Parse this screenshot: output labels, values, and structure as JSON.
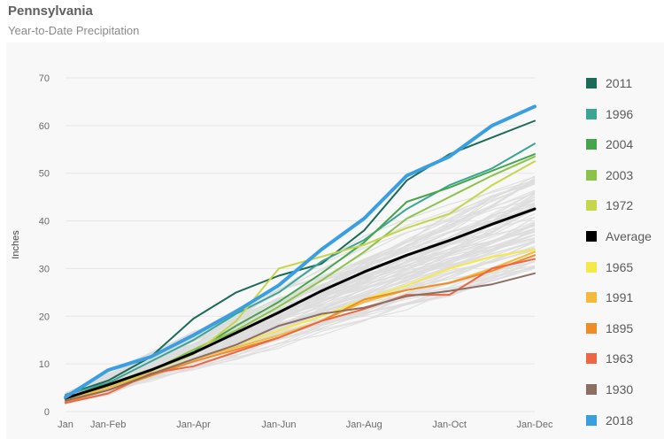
{
  "header": {
    "title": "Pennsylvania",
    "subtitle": "Year-to-Date Precipitation"
  },
  "colors": {
    "background_lines": "#dddddd",
    "axis_text": "#6a6a6a",
    "panel": "#f8f8f8"
  },
  "chart_data": {
    "type": "line",
    "title": "Pennsylvania",
    "subtitle": "Year-to-Date Precipitation",
    "xlabel": "",
    "ylabel": "Inches",
    "ylim": [
      0,
      70
    ],
    "yticks": [
      0,
      10,
      20,
      30,
      40,
      50,
      60,
      70
    ],
    "x_months": [
      0,
      1,
      2,
      3,
      4,
      5,
      6,
      7,
      8,
      9,
      10,
      11
    ],
    "xtick_labels": [
      {
        "label": "Jan",
        "month": 0
      },
      {
        "label": "Jan-Feb",
        "month": 1
      },
      {
        "label": "Jan-Apr",
        "month": 3
      },
      {
        "label": "Jan-Jun",
        "month": 5
      },
      {
        "label": "Jan-Aug",
        "month": 7
      },
      {
        "label": "Jan-Oct",
        "month": 9
      },
      {
        "label": "Jan-Dec",
        "month": 11
      }
    ],
    "grid": true,
    "legend_position": "right",
    "background_series_note_count": 0,
    "series": [
      {
        "name": "2011",
        "color": "#1b6b58",
        "width": 2,
        "values": [
          3.5,
          6.5,
          11.5,
          19.5,
          25,
          28.5,
          31,
          38,
          48.5,
          54,
          57.5,
          61
        ]
      },
      {
        "name": "1996",
        "color": "#3aa593",
        "width": 2,
        "values": [
          3.5,
          6,
          10.5,
          15,
          20.5,
          25,
          31.5,
          36,
          42.5,
          47.5,
          51,
          56.2
        ]
      },
      {
        "name": "2004",
        "color": "#46a54b",
        "width": 2,
        "values": [
          2.5,
          5.5,
          8.5,
          12.5,
          18,
          23,
          29,
          35.5,
          44,
          47,
          50.5,
          54
        ]
      },
      {
        "name": "2003",
        "color": "#8bc34a",
        "width": 2,
        "values": [
          2.5,
          5,
          8.5,
          13,
          17,
          22,
          27.5,
          33.5,
          40.5,
          45,
          49.5,
          53.5
        ]
      },
      {
        "name": "1972",
        "color": "#c6d64a",
        "width": 2,
        "values": [
          2.5,
          5,
          8.5,
          12,
          19,
          30,
          32.5,
          35,
          38.5,
          41.5,
          47.5,
          52.5
        ]
      },
      {
        "name": "Average",
        "color": "#000000",
        "width": 3,
        "values": [
          2.8,
          5.6,
          8.7,
          12.3,
          16.5,
          20.8,
          25.3,
          29.3,
          32.8,
          35.9,
          39.3,
          42.5
        ]
      },
      {
        "name": "1965",
        "color": "#f5e94a",
        "width": 2,
        "values": [
          2.5,
          4.5,
          7.5,
          11,
          14,
          17,
          20,
          23.5,
          26.5,
          30,
          32.5,
          34
        ]
      },
      {
        "name": "1991",
        "color": "#f6b93b",
        "width": 2,
        "values": [
          2.5,
          5,
          8,
          11,
          13.5,
          16,
          19,
          23,
          25.5,
          27,
          30,
          33.5
        ]
      },
      {
        "name": "1895",
        "color": "#f08c28",
        "width": 2,
        "values": [
          2,
          4.5,
          7.5,
          10.5,
          13,
          15.5,
          19,
          23.5,
          25.5,
          27,
          29.5,
          32.8
        ]
      },
      {
        "name": "1963",
        "color": "#ee6744",
        "width": 2,
        "values": [
          1.8,
          3.8,
          8,
          9.5,
          12.5,
          15.5,
          19,
          21.5,
          24.5,
          24.5,
          30,
          32
        ]
      },
      {
        "name": "1930",
        "color": "#8d6e63",
        "width": 2,
        "values": [
          2.3,
          4.5,
          7.8,
          11,
          14,
          18,
          20.5,
          21.8,
          24.2,
          25.3,
          26.7,
          29
        ]
      },
      {
        "name": "2018",
        "color": "#3a9fe0",
        "width": 4,
        "values": [
          3,
          8.7,
          11.5,
          16,
          21,
          26.5,
          34,
          40.5,
          49.5,
          53.5,
          60,
          64
        ]
      }
    ]
  }
}
